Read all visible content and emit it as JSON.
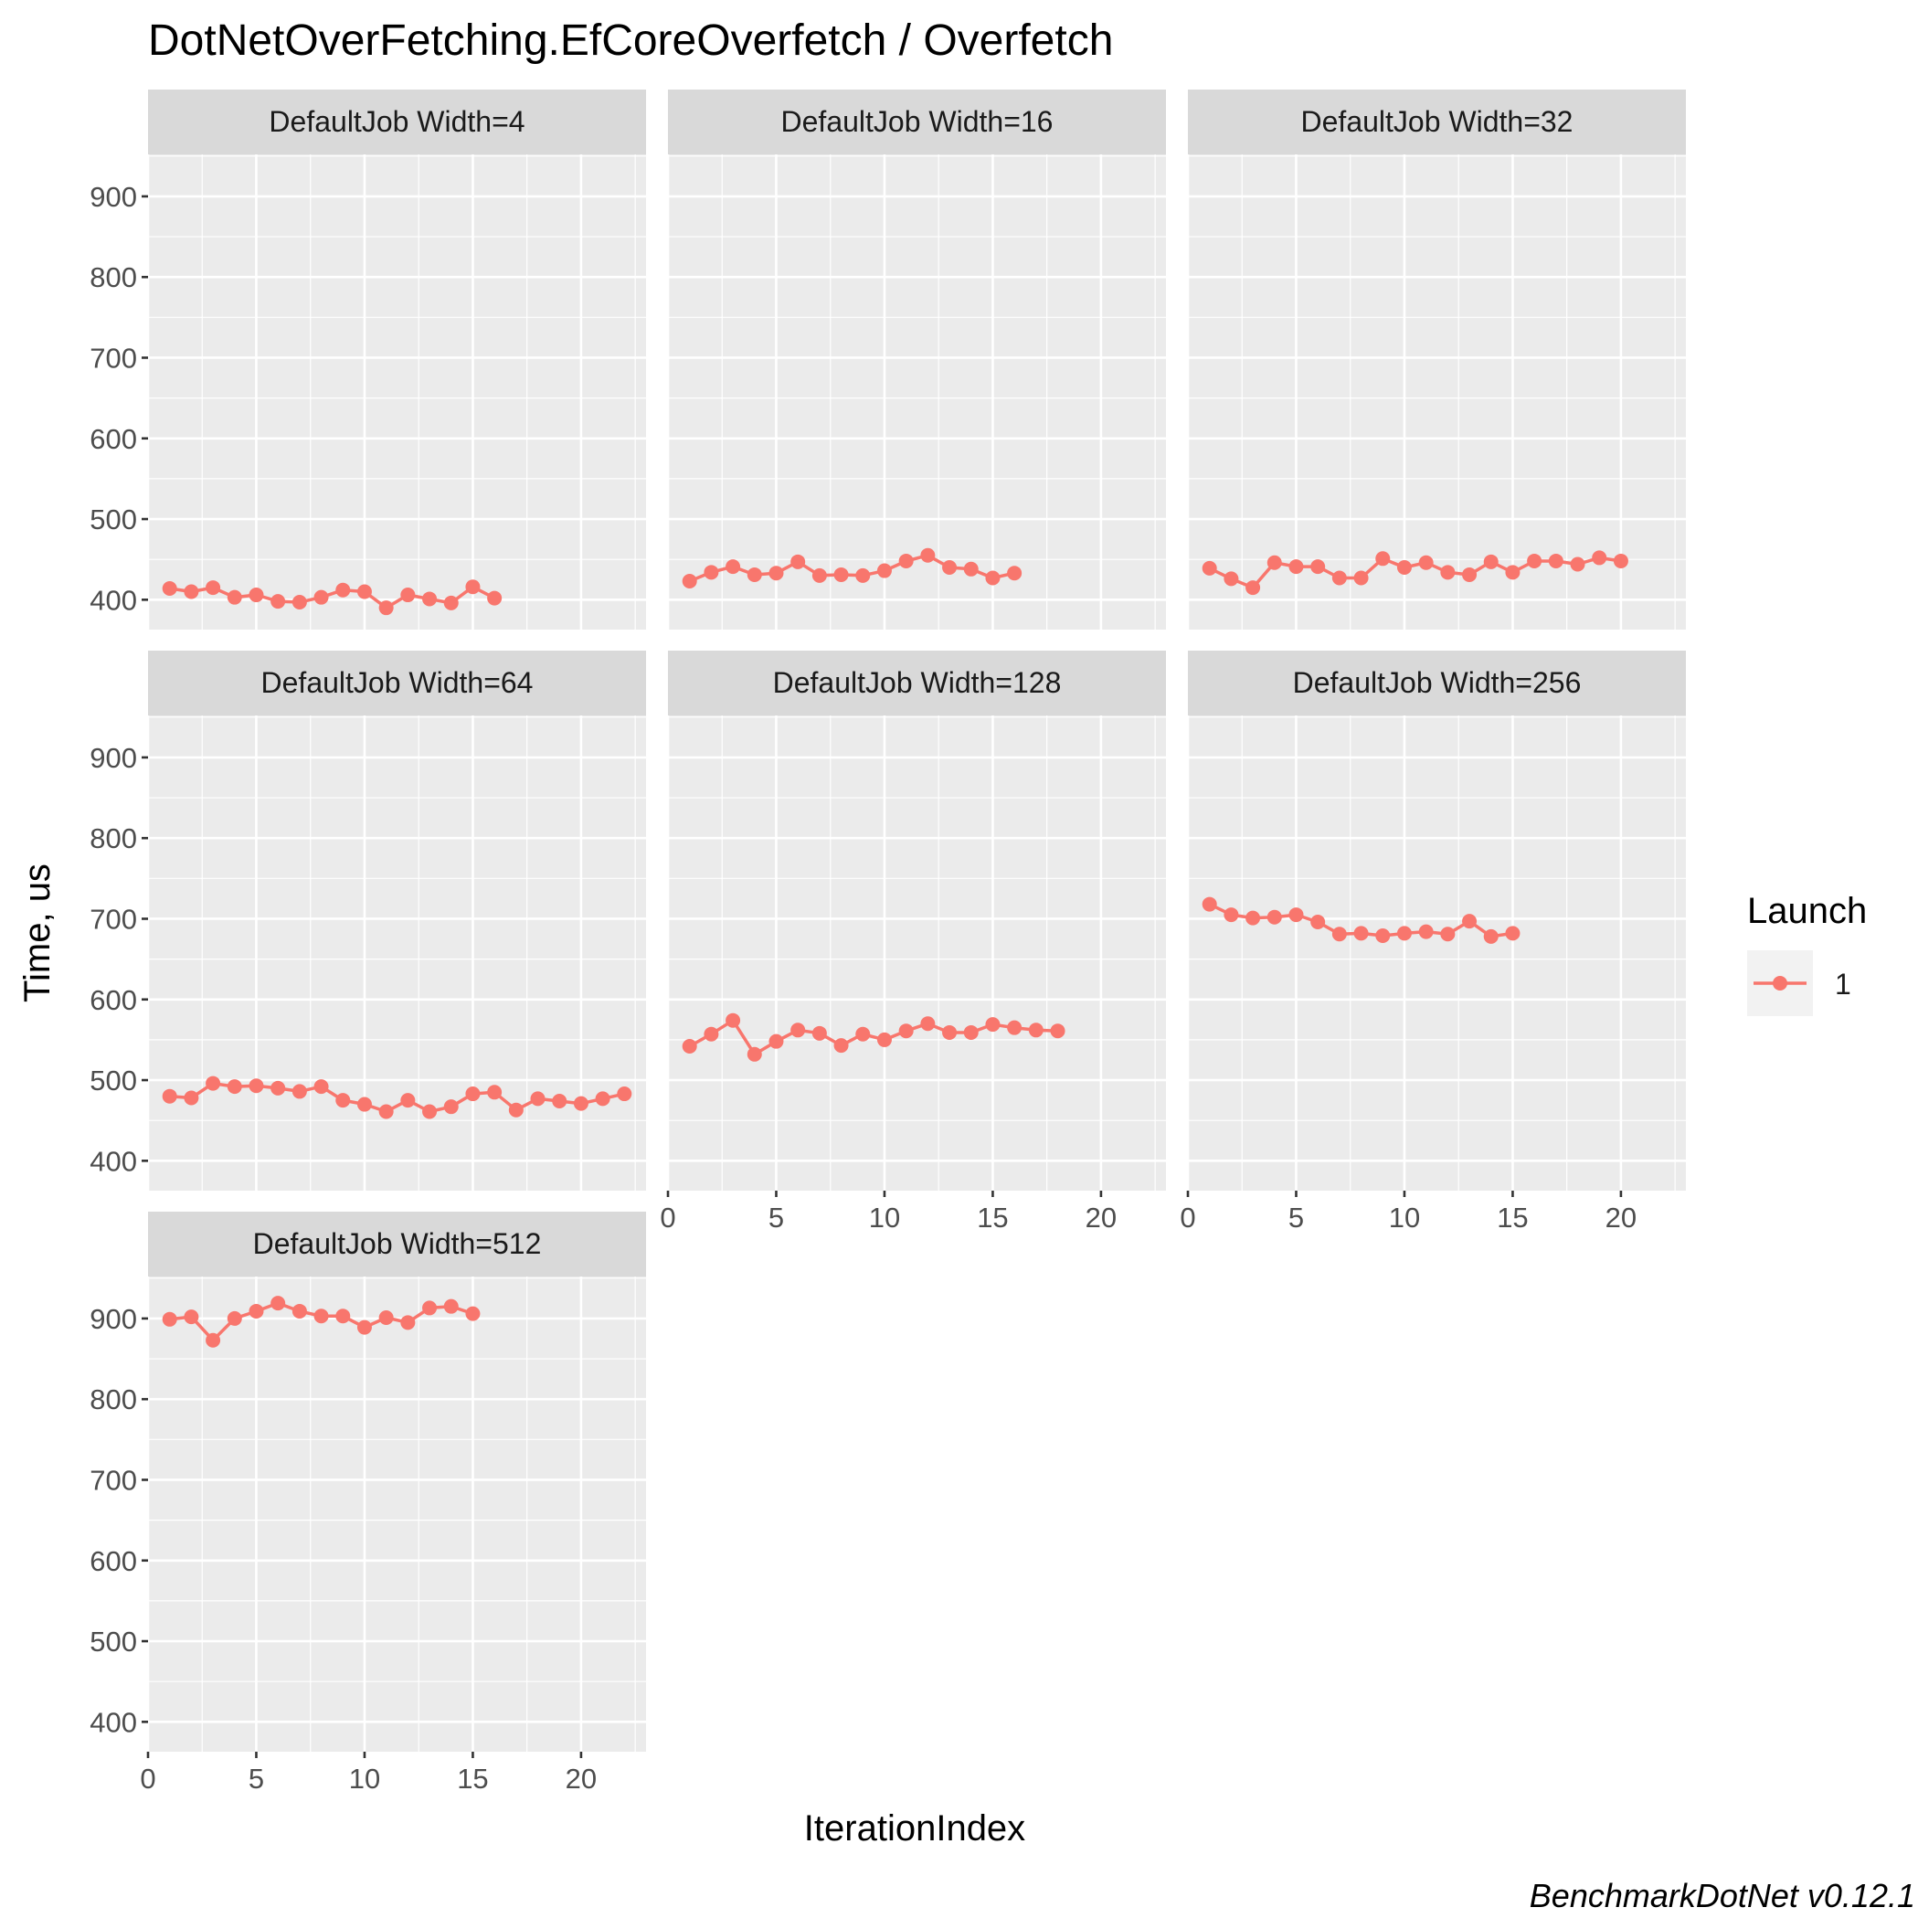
{
  "chart_data": {
    "type": "line",
    "title": "DotNetOverFetching.EfCoreOverfetch / Overfetch",
    "xlabel": "IterationIndex",
    "ylabel": "Time, us",
    "caption": "BenchmarkDotNet v0.12.1",
    "xlim": [
      0,
      23
    ],
    "ylim": [
      363,
      952
    ],
    "x_ticks": [
      0,
      5,
      10,
      15,
      20
    ],
    "y_ticks": [
      400,
      500,
      600,
      700,
      800,
      900
    ],
    "grid": true,
    "legend": {
      "title": "Launch",
      "entries": [
        "1"
      ],
      "position": "right"
    },
    "series_color": "#F8766D",
    "panels": [
      {
        "label": "DefaultJob Width=4",
        "values": [
          414,
          410,
          415,
          403,
          406,
          398,
          397,
          403,
          412,
          410,
          390,
          406,
          401,
          396,
          416,
          402
        ]
      },
      {
        "label": "DefaultJob Width=16",
        "values": [
          423,
          434,
          441,
          431,
          433,
          447,
          430,
          431,
          430,
          436,
          448,
          455,
          440,
          438,
          427,
          433
        ]
      },
      {
        "label": "DefaultJob Width=32",
        "values": [
          439,
          426,
          415,
          446,
          441,
          441,
          427,
          427,
          451,
          440,
          446,
          434,
          431,
          447,
          434,
          448,
          448,
          444,
          452,
          448
        ]
      },
      {
        "label": "DefaultJob Width=64",
        "values": [
          480,
          478,
          496,
          492,
          493,
          490,
          486,
          492,
          475,
          470,
          461,
          475,
          461,
          467,
          483,
          485,
          463,
          477,
          474,
          471,
          477,
          483
        ]
      },
      {
        "label": "DefaultJob Width=128",
        "values": [
          542,
          557,
          574,
          532,
          548,
          562,
          558,
          543,
          557,
          550,
          561,
          570,
          559,
          559,
          569,
          565,
          562,
          561
        ]
      },
      {
        "label": "DefaultJob Width=256",
        "values": [
          718,
          705,
          701,
          702,
          705,
          696,
          681,
          682,
          679,
          682,
          684,
          681,
          697,
          678,
          682
        ]
      },
      {
        "label": "DefaultJob Width=512",
        "values": [
          899,
          902,
          873,
          900,
          909,
          919,
          909,
          903,
          903,
          889,
          901,
          895,
          913,
          915,
          906
        ]
      }
    ]
  }
}
